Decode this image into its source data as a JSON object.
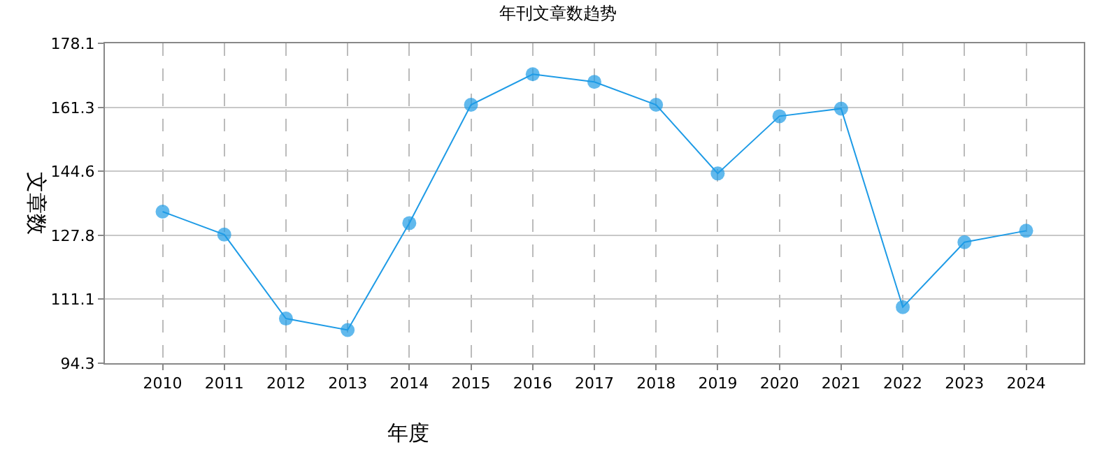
{
  "chart_data": {
    "type": "line",
    "title": "年刊文章数趋势",
    "xlabel": "年度",
    "ylabel": "文章数",
    "categories": [
      "2010",
      "2011",
      "2012",
      "2013",
      "2014",
      "2015",
      "2016",
      "2017",
      "2018",
      "2019",
      "2020",
      "2021",
      "2022",
      "2023",
      "2024"
    ],
    "series": [
      {
        "color": "#1e9be6",
        "values": [
          134,
          128,
          106,
          103,
          131,
          162,
          170,
          168,
          162,
          144,
          159,
          161,
          109,
          126,
          129
        ]
      }
    ],
    "ylim": [
      94.3,
      178.1
    ],
    "yticks": [
      94.3,
      111.1,
      127.8,
      144.6,
      161.3,
      178.1
    ],
    "grid": true,
    "marker": "circle",
    "line_style": "solid"
  }
}
